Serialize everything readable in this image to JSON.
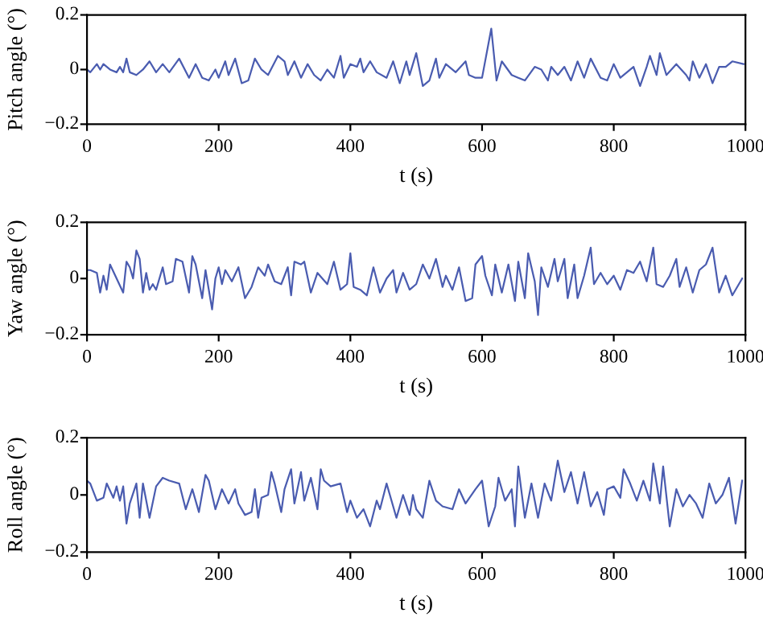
{
  "chart_data": [
    {
      "type": "line",
      "xlabel": "t (s)",
      "ylabel": "Pitch angle (°)",
      "xlim": [
        0,
        1000
      ],
      "ylim": [
        -0.2,
        0.2
      ],
      "xticks": [
        0,
        200,
        400,
        600,
        800,
        1000
      ],
      "yticks": [
        -0.2,
        0,
        0.2
      ],
      "grid": false,
      "legend": false,
      "series": [
        {
          "color": "#4a5cb0",
          "x": [
            0,
            5,
            15,
            20,
            25,
            35,
            45,
            50,
            55,
            60,
            65,
            75,
            85,
            95,
            105,
            115,
            125,
            140,
            155,
            165,
            175,
            185,
            195,
            200,
            210,
            215,
            225,
            235,
            245,
            255,
            265,
            275,
            290,
            300,
            305,
            315,
            325,
            335,
            345,
            355,
            365,
            375,
            385,
            390,
            400,
            410,
            415,
            420,
            430,
            440,
            455,
            465,
            475,
            485,
            490,
            500,
            510,
            520,
            530,
            535,
            545,
            560,
            575,
            580,
            590,
            600,
            614,
            622,
            630,
            645,
            655,
            665,
            680,
            690,
            700,
            705,
            715,
            725,
            735,
            745,
            755,
            765,
            780,
            790,
            800,
            810,
            820,
            830,
            840,
            850,
            855,
            865,
            870,
            880,
            895,
            910,
            915,
            920,
            930,
            940,
            950,
            960,
            970,
            980,
            997
          ],
          "values": [
            0,
            -0.01,
            0.02,
            0,
            0.02,
            0,
            -0.01,
            0.01,
            -0.01,
            0.04,
            -0.01,
            -0.02,
            0,
            0.03,
            -0.01,
            0.02,
            -0.01,
            0.04,
            -0.03,
            0.02,
            -0.03,
            -0.04,
            0,
            -0.03,
            0.03,
            -0.02,
            0.04,
            -0.05,
            -0.04,
            0.04,
            0,
            -0.02,
            0.05,
            0.03,
            -0.02,
            0.03,
            -0.03,
            0.02,
            -0.02,
            -0.04,
            0,
            -0.03,
            0.05,
            -0.03,
            0.02,
            0.01,
            0.04,
            -0.01,
            0.03,
            -0.01,
            -0.03,
            0.03,
            -0.05,
            0.03,
            -0.02,
            0.06,
            -0.06,
            -0.04,
            0.04,
            -0.03,
            0.02,
            -0.01,
            0.03,
            -0.02,
            -0.03,
            -0.03,
            0.15,
            -0.04,
            0.03,
            -0.02,
            -0.03,
            -0.04,
            0.01,
            0,
            -0.04,
            0.01,
            -0.02,
            0.01,
            -0.04,
            0.03,
            -0.03,
            0.04,
            -0.03,
            -0.04,
            0.02,
            -0.03,
            -0.01,
            0.01,
            -0.06,
            0.01,
            0.05,
            -0.02,
            0.06,
            -0.02,
            0.02,
            -0.02,
            -0.04,
            0.03,
            -0.03,
            0.02,
            -0.05,
            0.01,
            0.01,
            0.03,
            0.02
          ]
        }
      ]
    },
    {
      "type": "line",
      "xlabel": "t (s)",
      "ylabel": "Yaw angle (°)",
      "xlim": [
        0,
        1000
      ],
      "ylim": [
        -0.2,
        0.2
      ],
      "xticks": [
        0,
        200,
        400,
        600,
        800,
        1000
      ],
      "yticks": [
        -0.2,
        0,
        0.2
      ],
      "grid": false,
      "legend": false,
      "series": [
        {
          "color": "#4a5cb0",
          "x": [
            0,
            5,
            15,
            20,
            25,
            30,
            35,
            45,
            55,
            60,
            65,
            70,
            75,
            80,
            85,
            90,
            95,
            100,
            105,
            115,
            120,
            130,
            135,
            145,
            155,
            160,
            165,
            175,
            180,
            190,
            195,
            200,
            205,
            210,
            220,
            230,
            240,
            250,
            260,
            270,
            275,
            285,
            295,
            305,
            310,
            315,
            325,
            330,
            340,
            350,
            365,
            375,
            385,
            395,
            400,
            405,
            415,
            425,
            435,
            445,
            455,
            465,
            470,
            480,
            490,
            500,
            510,
            520,
            530,
            540,
            545,
            555,
            565,
            575,
            585,
            590,
            600,
            605,
            615,
            620,
            630,
            640,
            650,
            655,
            665,
            670,
            680,
            685,
            690,
            700,
            710,
            715,
            725,
            730,
            740,
            745,
            755,
            765,
            770,
            780,
            790,
            800,
            810,
            820,
            830,
            840,
            850,
            860,
            865,
            875,
            885,
            895,
            900,
            910,
            920,
            930,
            940,
            950,
            960,
            970,
            980,
            995
          ],
          "values": [
            0.03,
            0.03,
            0.02,
            -0.05,
            0.01,
            -0.04,
            0.05,
            0,
            -0.05,
            0.06,
            0.04,
            0,
            0.1,
            0.07,
            -0.05,
            0.02,
            -0.04,
            -0.02,
            -0.04,
            0.04,
            -0.02,
            -0.01,
            0.07,
            0.06,
            -0.05,
            0.08,
            0.05,
            -0.07,
            0.03,
            -0.11,
            0,
            0.04,
            -0.02,
            0.03,
            -0.01,
            0.04,
            -0.07,
            -0.03,
            0.04,
            0.01,
            0.05,
            -0.01,
            -0.02,
            0.04,
            -0.06,
            0.06,
            0.05,
            0.06,
            -0.05,
            0.02,
            -0.02,
            0.06,
            -0.04,
            -0.02,
            0.09,
            -0.03,
            -0.04,
            -0.06,
            0.04,
            -0.05,
            0,
            0.03,
            -0.05,
            0.02,
            -0.04,
            -0.02,
            0.05,
            0,
            0.07,
            -0.03,
            0.01,
            -0.04,
            0.04,
            -0.08,
            -0.07,
            0.05,
            0.08,
            0.01,
            -0.06,
            0.05,
            -0.05,
            0.05,
            -0.08,
            0.06,
            -0.07,
            0.09,
            -0.01,
            -0.13,
            0.04,
            -0.03,
            0.07,
            -0.01,
            0.07,
            -0.07,
            0.05,
            -0.07,
            0.01,
            0.11,
            -0.02,
            0.02,
            -0.02,
            0.01,
            -0.04,
            0.03,
            0.02,
            0.06,
            -0.01,
            0.11,
            -0.02,
            -0.03,
            0.01,
            0.07,
            -0.03,
            0.04,
            -0.05,
            0.03,
            0.05,
            0.11,
            -0.05,
            0.01,
            -0.06,
            0
          ]
        }
      ]
    },
    {
      "type": "line",
      "xlabel": "t (s)",
      "ylabel": "Roll angle (°)",
      "xlim": [
        0,
        1000
      ],
      "ylim": [
        -0.2,
        0.2
      ],
      "xticks": [
        0,
        200,
        400,
        600,
        800,
        1000
      ],
      "yticks": [
        -0.2,
        0,
        0.2
      ],
      "grid": false,
      "legend": false,
      "series": [
        {
          "color": "#4a5cb0",
          "x": [
            0,
            5,
            15,
            25,
            30,
            40,
            45,
            50,
            55,
            60,
            65,
            75,
            80,
            85,
            95,
            105,
            115,
            125,
            140,
            150,
            160,
            170,
            180,
            185,
            195,
            205,
            215,
            225,
            230,
            240,
            250,
            255,
            260,
            265,
            275,
            280,
            285,
            295,
            300,
            310,
            315,
            325,
            330,
            340,
            350,
            355,
            360,
            370,
            385,
            395,
            400,
            410,
            420,
            430,
            440,
            445,
            455,
            470,
            480,
            490,
            495,
            500,
            510,
            520,
            530,
            540,
            555,
            565,
            575,
            590,
            600,
            610,
            620,
            625,
            635,
            645,
            650,
            655,
            665,
            675,
            685,
            695,
            705,
            715,
            725,
            735,
            745,
            755,
            765,
            775,
            785,
            790,
            800,
            810,
            815,
            825,
            835,
            845,
            855,
            860,
            870,
            875,
            885,
            895,
            905,
            915,
            925,
            935,
            945,
            955,
            965,
            975,
            985,
            995
          ],
          "values": [
            0.05,
            0.04,
            -0.02,
            -0.01,
            0.04,
            -0.01,
            0.03,
            -0.02,
            0.03,
            -0.1,
            -0.03,
            0.04,
            -0.08,
            0.04,
            -0.08,
            0.03,
            0.06,
            0.05,
            0.04,
            -0.05,
            0.02,
            -0.06,
            0.07,
            0.05,
            -0.05,
            0.02,
            -0.03,
            0.02,
            -0.03,
            -0.07,
            -0.06,
            0.02,
            -0.08,
            -0.01,
            0,
            0.08,
            0.04,
            -0.06,
            0.02,
            0.09,
            -0.03,
            0.08,
            -0.02,
            0.06,
            -0.05,
            0.09,
            0.05,
            0.03,
            0.04,
            -0.06,
            -0.02,
            -0.08,
            -0.05,
            -0.11,
            -0.02,
            -0.05,
            0.04,
            -0.08,
            0,
            -0.07,
            0,
            -0.05,
            -0.08,
            0.05,
            -0.02,
            -0.04,
            -0.05,
            0.02,
            -0.03,
            0.02,
            0.05,
            -0.11,
            -0.04,
            0.06,
            -0.02,
            0.02,
            -0.11,
            0.1,
            -0.08,
            0.04,
            -0.08,
            0.04,
            -0.02,
            0.12,
            0.01,
            0.08,
            -0.03,
            0.08,
            -0.04,
            0.01,
            -0.07,
            0.02,
            0.03,
            -0.01,
            0.09,
            0.04,
            -0.02,
            0.05,
            -0.02,
            0.11,
            -0.03,
            0.1,
            -0.11,
            0.02,
            -0.04,
            0,
            -0.03,
            -0.08,
            0.04,
            -0.03,
            0,
            0.06,
            -0.1,
            0.05
          ]
        }
      ]
    }
  ]
}
